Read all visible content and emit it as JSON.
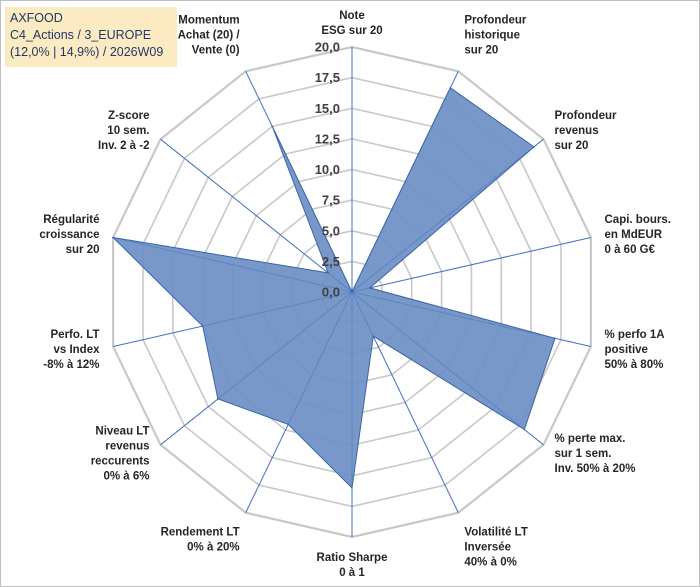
{
  "header": {
    "line1": "AXFOOD",
    "line2": "C4_Actions / 3_EUROPE",
    "line3": "(12,0% | 14,9%) / 2026W09"
  },
  "colors": {
    "fill": "#6b8fc3",
    "stroke": "#3a64a8",
    "spoke": "#4472c4",
    "grid": "#c8c8c8",
    "title_bg": "#fcebc2"
  },
  "chart_data": {
    "type": "radar",
    "title": "AXFOOD",
    "rmin": 0,
    "rmax": 20,
    "ticks": [
      "0,0",
      "2,5",
      "5,0",
      "7,5",
      "10,0",
      "12,5",
      "15,0",
      "17,5",
      "20,0"
    ],
    "axes": [
      [
        "Note",
        "ESG sur 20"
      ],
      [
        "Profondeur",
        "historique",
        "sur 20"
      ],
      [
        "Profondeur",
        "revenus",
        "sur 20"
      ],
      [
        "Capi. bours.",
        "en MdEUR",
        "0 à 60 G€"
      ],
      [
        "% perfo 1A",
        "positive",
        "50% à 80%"
      ],
      [
        "% perte max.",
        "sur 1 sem.",
        "Inv. 50% à 20%"
      ],
      [
        "Volatilité LT",
        "Inversée",
        "40% à 0%"
      ],
      [
        "Ratio Sharpe",
        "0 à 1"
      ],
      [
        "Rendement LT",
        "0% à 20%"
      ],
      [
        "Niveau LT",
        "revenus",
        "reccurents",
        "0% à 6%"
      ],
      [
        "Perfo. LT",
        "vs Index",
        "-8% à 12%"
      ],
      [
        "Régularité",
        "croissance",
        "sur 20"
      ],
      [
        "Z-score",
        "10 sem.",
        "Inv. 2 à -2"
      ],
      [
        "Momentum",
        "Achat (20) /",
        "Vente (0)"
      ]
    ],
    "series": [
      {
        "name": "AXFOOD",
        "values": [
          0,
          18.5,
          19.0,
          1.5,
          17.0,
          18.0,
          4.0,
          16.0,
          12.0,
          14.0,
          12.5,
          20.0,
          2.5,
          15.0
        ]
      }
    ]
  }
}
